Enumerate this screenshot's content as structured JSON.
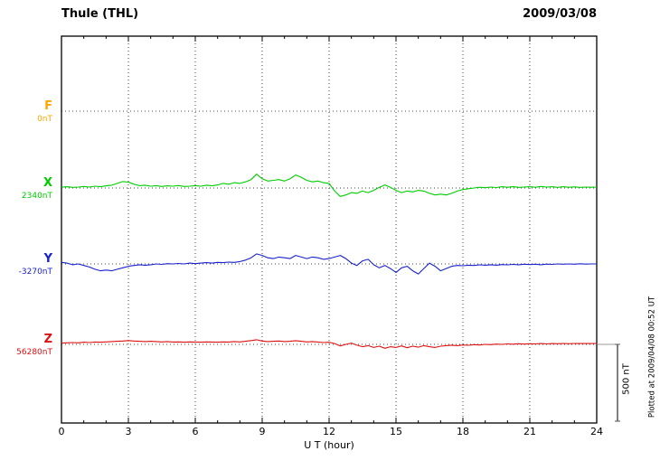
{
  "header": {
    "title": "Thule (THL)",
    "date": "2009/03/08"
  },
  "axis": {
    "xlabel": "U T (hour)"
  },
  "scale_bar": {
    "label": "500 nT"
  },
  "footer_note": "Plotted at 2009/04/08 00:52 UT",
  "chart_data": {
    "type": "line",
    "title": "Thule (THL)",
    "date": "2009/03/08",
    "xlabel": "U T (hour)",
    "xlim": [
      0,
      24
    ],
    "xticks": [
      0,
      3,
      6,
      9,
      12,
      15,
      18,
      21,
      24
    ],
    "x_start": 0,
    "x_step": 0.25,
    "y_unit": "nT",
    "scale_bar_nT": 500,
    "grid": "dotted",
    "series": [
      {
        "name": "F",
        "baseline_label": "0nT",
        "color": "#FFA500",
        "values": []
      },
      {
        "name": "X",
        "baseline_label": "2340nT",
        "color": "#00CC00",
        "values": [
          5,
          8,
          4,
          6,
          10,
          6,
          12,
          8,
          14,
          18,
          30,
          42,
          38,
          25,
          15,
          18,
          12,
          15,
          10,
          14,
          12,
          16,
          10,
          12,
          15,
          12,
          18,
          14,
          20,
          30,
          25,
          35,
          30,
          40,
          55,
          90,
          60,
          45,
          50,
          55,
          45,
          60,
          85,
          70,
          50,
          40,
          45,
          35,
          30,
          -20,
          -55,
          -45,
          -30,
          -35,
          -20,
          -30,
          -15,
          5,
          20,
          5,
          -15,
          -30,
          -20,
          -25,
          -15,
          -20,
          -35,
          -45,
          -40,
          -45,
          -35,
          -20,
          -10,
          -5,
          0,
          5,
          2,
          6,
          3,
          8,
          5,
          8,
          4,
          6,
          8,
          5,
          10,
          6,
          8,
          4,
          8,
          5,
          7,
          4,
          6,
          5,
          6
        ]
      },
      {
        "name": "Y",
        "baseline_label": "-3270nT",
        "color": "#1822CC",
        "values": [
          10,
          5,
          -5,
          0,
          -10,
          -20,
          -35,
          -45,
          -40,
          -45,
          -35,
          -25,
          -15,
          -10,
          -5,
          -8,
          -5,
          0,
          -3,
          2,
          0,
          3,
          0,
          5,
          2,
          5,
          8,
          5,
          10,
          8,
          12,
          10,
          15,
          25,
          40,
          65,
          55,
          40,
          35,
          45,
          40,
          35,
          55,
          45,
          35,
          45,
          40,
          30,
          35,
          45,
          55,
          35,
          5,
          -10,
          20,
          30,
          -5,
          -25,
          -10,
          -30,
          -55,
          -25,
          -15,
          -45,
          -65,
          -30,
          5,
          -15,
          -45,
          -30,
          -15,
          -10,
          -12,
          -8,
          -10,
          -6,
          -8,
          -5,
          -8,
          -4,
          -6,
          -3,
          -5,
          -2,
          -4,
          -2,
          -5,
          -1,
          -3,
          0,
          -2,
          0,
          -2,
          1,
          -1,
          0,
          0
        ]
      },
      {
        "name": "Z",
        "baseline_label": "56280nT",
        "color": "#DD1111",
        "values": [
          8,
          10,
          12,
          10,
          14,
          12,
          15,
          14,
          16,
          18,
          20,
          22,
          25,
          22,
          20,
          18,
          20,
          18,
          16,
          18,
          15,
          16,
          14,
          16,
          15,
          14,
          16,
          15,
          14,
          16,
          15,
          18,
          16,
          20,
          25,
          30,
          22,
          18,
          20,
          22,
          18,
          20,
          24,
          20,
          16,
          18,
          15,
          12,
          14,
          5,
          -10,
          0,
          8,
          -5,
          -15,
          -8,
          -20,
          -12,
          -25,
          -15,
          -20,
          -10,
          -22,
          -12,
          -18,
          -8,
          -15,
          -20,
          -12,
          -8,
          -5,
          -8,
          -4,
          -6,
          -2,
          -4,
          0,
          -2,
          2,
          0,
          3,
          1,
          4,
          2,
          4,
          3,
          5,
          3,
          5,
          4,
          6,
          4,
          6,
          5,
          6,
          5,
          6
        ]
      }
    ]
  }
}
